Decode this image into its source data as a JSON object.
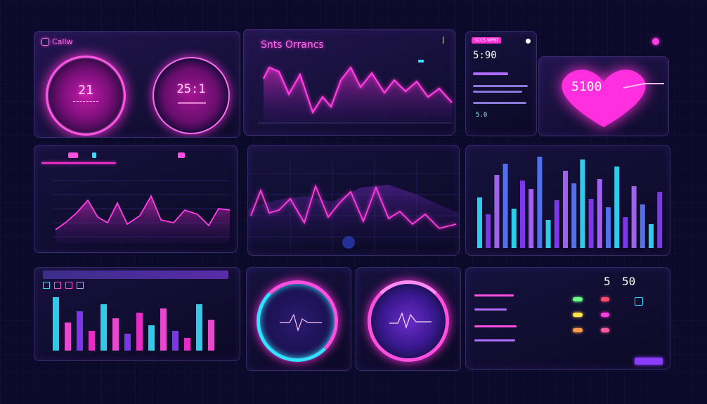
{
  "colors": {
    "background": "#0b0a2a",
    "magenta": "#ff2fd6",
    "purple": "#8a3cff",
    "cyan": "#33e0ff",
    "panel_border": "#6a5ac8"
  },
  "top_left": {
    "logo_text": "Callw",
    "gauge_left_value": "21",
    "gauge_right_value": "25:1"
  },
  "top_chart": {
    "title": "Snts Orrancs"
  },
  "top_right": {
    "tag": "SCCS WMD",
    "big_value": "5:90",
    "bottom_value": "5.0",
    "heart_value": "5100"
  },
  "bottom_right": {
    "value_a": "5",
    "value_b": "50"
  },
  "icons": {
    "logo": "logo-icon",
    "share": "share-icon",
    "record": "record-icon",
    "heartbeat": "heartbeat-icon"
  }
}
